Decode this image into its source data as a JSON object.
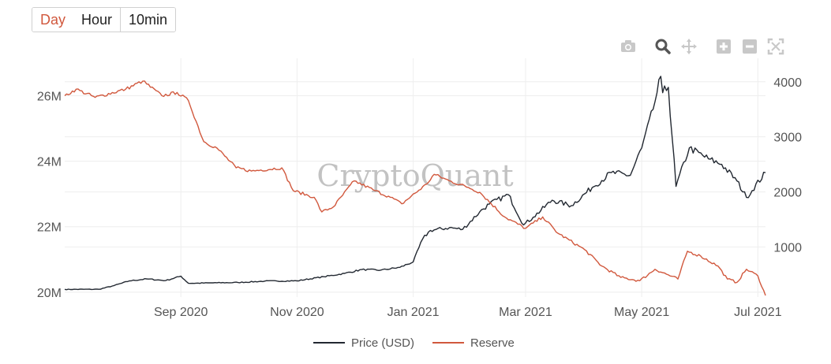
{
  "tabs": [
    {
      "label": "Day",
      "active": true
    },
    {
      "label": "Hour",
      "active": false
    },
    {
      "label": "10min",
      "active": false
    }
  ],
  "modebar": {
    "icons": [
      "camera-icon",
      "zoom-icon",
      "pan-icon",
      "zoom-in-icon",
      "zoom-out-icon",
      "autoscale-icon"
    ]
  },
  "watermark": "CryptoQuant",
  "colors": {
    "price": "#222831",
    "reserve": "#d1583d",
    "grid": "#eeeeee",
    "tick": "#555555"
  },
  "chart_data": {
    "type": "line",
    "x_ticks": [
      {
        "date": "2020-09-01",
        "label": "Sep 2020"
      },
      {
        "date": "2020-11-01",
        "label": "Nov 2020"
      },
      {
        "date": "2021-01-01",
        "label": "Jan 2021"
      },
      {
        "date": "2021-03-01",
        "label": "Mar 2021"
      },
      {
        "date": "2021-05-01",
        "label": "May 2021"
      },
      {
        "date": "2021-07-01",
        "label": "Jul 2021"
      }
    ],
    "xlim": [
      "2020-07-02",
      "2021-07-05"
    ],
    "y_left": {
      "range": [
        19900000,
        27000000
      ],
      "ticks": [
        20000000,
        22000000,
        24000000,
        26000000
      ],
      "tick_labels": [
        "20M",
        "22M",
        "24M",
        "26M"
      ]
    },
    "y_right": {
      "range": [
        120,
        4340
      ],
      "ticks": [
        1000,
        2000,
        3000,
        4000
      ],
      "tick_labels": [
        "1000",
        "2000",
        "3000",
        "4000"
      ]
    },
    "legend_position": "bottom-center",
    "series": [
      {
        "name": "Price (USD)",
        "axis": "right",
        "color": "#222831",
        "points": [
          [
            "2020-07-02",
            230
          ],
          [
            "2020-07-20",
            232
          ],
          [
            "2020-07-28",
            300
          ],
          [
            "2020-08-05",
            385
          ],
          [
            "2020-08-14",
            420
          ],
          [
            "2020-08-24",
            390
          ],
          [
            "2020-09-01",
            470
          ],
          [
            "2020-09-05",
            340
          ],
          [
            "2020-09-20",
            350
          ],
          [
            "2020-10-01",
            355
          ],
          [
            "2020-10-15",
            380
          ],
          [
            "2020-11-01",
            385
          ],
          [
            "2020-11-15",
            460
          ],
          [
            "2020-11-26",
            520
          ],
          [
            "2020-12-05",
            590
          ],
          [
            "2020-12-15",
            580
          ],
          [
            "2020-12-25",
            630
          ],
          [
            "2021-01-01",
            730
          ],
          [
            "2021-01-06",
            1150
          ],
          [
            "2021-01-10",
            1300
          ],
          [
            "2021-01-20",
            1350
          ],
          [
            "2021-01-27",
            1320
          ],
          [
            "2021-02-05",
            1640
          ],
          [
            "2021-02-10",
            1780
          ],
          [
            "2021-02-20",
            1950
          ],
          [
            "2021-02-28",
            1400
          ],
          [
            "2021-03-05",
            1540
          ],
          [
            "2021-03-15",
            1850
          ],
          [
            "2021-03-25",
            1750
          ],
          [
            "2021-04-05",
            2080
          ],
          [
            "2021-04-15",
            2350
          ],
          [
            "2021-04-25",
            2300
          ],
          [
            "2021-05-01",
            2800
          ],
          [
            "2021-05-07",
            3500
          ],
          [
            "2021-05-11",
            4100
          ],
          [
            "2021-05-12",
            3800
          ],
          [
            "2021-05-15",
            3900
          ],
          [
            "2021-05-19",
            2100
          ],
          [
            "2021-05-26",
            2800
          ],
          [
            "2021-06-05",
            2600
          ],
          [
            "2021-06-12",
            2500
          ],
          [
            "2021-06-20",
            2200
          ],
          [
            "2021-06-25",
            1900
          ],
          [
            "2021-07-05",
            2350
          ]
        ]
      },
      {
        "name": "Reserve",
        "axis": "left",
        "color": "#d1583d",
        "points": [
          [
            "2020-07-02",
            26000000
          ],
          [
            "2020-07-08",
            26200000
          ],
          [
            "2020-07-18",
            25950000
          ],
          [
            "2020-08-03",
            26200000
          ],
          [
            "2020-08-12",
            26450000
          ],
          [
            "2020-08-22",
            26000000
          ],
          [
            "2020-08-30",
            26100000
          ],
          [
            "2020-09-05",
            25850000
          ],
          [
            "2020-09-13",
            24600000
          ],
          [
            "2020-09-20",
            24400000
          ],
          [
            "2020-09-30",
            23800000
          ],
          [
            "2020-10-08",
            23700000
          ],
          [
            "2020-10-24",
            23800000
          ],
          [
            "2020-10-30",
            23100000
          ],
          [
            "2020-11-10",
            22900000
          ],
          [
            "2020-11-14",
            22450000
          ],
          [
            "2020-11-20",
            22600000
          ],
          [
            "2020-12-01",
            23400000
          ],
          [
            "2020-12-12",
            23100000
          ],
          [
            "2020-12-20",
            22900000
          ],
          [
            "2020-12-26",
            22700000
          ],
          [
            "2021-01-08",
            23300000
          ],
          [
            "2021-01-12",
            23600000
          ],
          [
            "2021-01-20",
            23400000
          ],
          [
            "2021-01-30",
            23200000
          ],
          [
            "2021-02-05",
            23050000
          ],
          [
            "2021-02-18",
            22300000
          ],
          [
            "2021-03-01",
            21950000
          ],
          [
            "2021-03-10",
            22300000
          ],
          [
            "2021-03-18",
            21800000
          ],
          [
            "2021-04-01",
            21300000
          ],
          [
            "2021-04-10",
            20800000
          ],
          [
            "2021-04-20",
            20450000
          ],
          [
            "2021-04-30",
            20350000
          ],
          [
            "2021-05-08",
            20700000
          ],
          [
            "2021-05-20",
            20400000
          ],
          [
            "2021-05-25",
            21250000
          ],
          [
            "2021-06-01",
            21100000
          ],
          [
            "2021-06-10",
            20800000
          ],
          [
            "2021-06-15",
            20400000
          ],
          [
            "2021-06-20",
            20300000
          ],
          [
            "2021-06-25",
            20700000
          ],
          [
            "2021-07-01",
            20500000
          ],
          [
            "2021-07-05",
            19900000
          ]
        ]
      }
    ]
  }
}
